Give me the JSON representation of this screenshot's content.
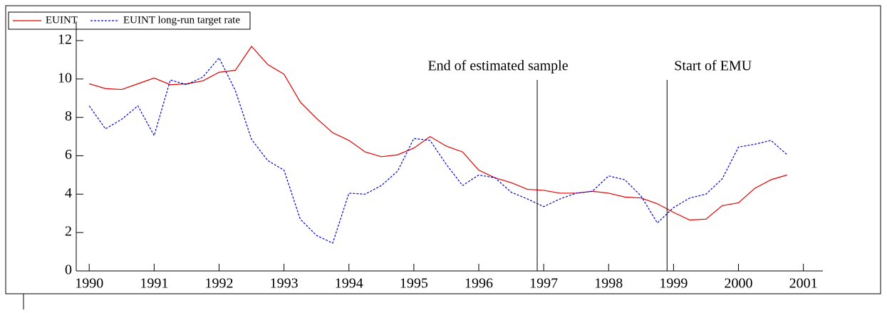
{
  "chart_data": {
    "type": "line",
    "x": [
      1990,
      1990.25,
      1990.5,
      1990.75,
      1991,
      1991.25,
      1991.5,
      1991.75,
      1992,
      1992.25,
      1992.5,
      1992.75,
      1993,
      1993.25,
      1993.5,
      1993.75,
      1994,
      1994.25,
      1994.5,
      1994.75,
      1995,
      1995.25,
      1995.5,
      1995.75,
      1996,
      1996.25,
      1996.5,
      1996.75,
      1997,
      1997.25,
      1997.5,
      1997.75,
      1998,
      1998.25,
      1998.5,
      1998.75,
      1999,
      1999.25,
      1999.5,
      1999.75,
      2000,
      2000.25,
      2000.5,
      2000.75
    ],
    "series": [
      {
        "name": "EUINT",
        "color": "#e00000",
        "dash": false,
        "values": [
          9.75,
          9.5,
          9.45,
          9.75,
          10.05,
          9.7,
          9.75,
          9.9,
          10.35,
          10.45,
          11.7,
          10.75,
          10.25,
          8.8,
          7.95,
          7.2,
          6.8,
          6.2,
          5.95,
          6.05,
          6.4,
          7.0,
          6.5,
          6.2,
          5.25,
          4.85,
          4.6,
          4.25,
          4.2,
          4.05,
          4.05,
          4.15,
          4.05,
          3.85,
          3.8,
          3.5,
          3.05,
          2.65,
          2.7,
          3.4,
          3.55,
          4.3,
          4.75,
          5.0
        ]
      },
      {
        "name": "EUINT long-run target rate",
        "color": "#0000e0",
        "dash": true,
        "values": [
          8.6,
          7.4,
          7.9,
          8.6,
          7.05,
          9.95,
          9.7,
          10.1,
          11.1,
          9.4,
          6.85,
          5.75,
          5.25,
          2.7,
          1.85,
          1.45,
          4.05,
          4.0,
          4.45,
          5.2,
          6.9,
          6.8,
          5.55,
          4.45,
          5.0,
          4.85,
          4.1,
          3.75,
          3.35,
          3.75,
          4.05,
          4.15,
          4.95,
          4.75,
          3.9,
          2.5,
          3.3,
          3.8,
          4.0,
          4.8,
          6.45,
          6.6,
          6.8,
          6.05
        ]
      }
    ],
    "annotations": [
      {
        "text": "End of estimated sample",
        "x": 1996.9
      },
      {
        "text": "Start of EMU",
        "x": 1998.9
      }
    ],
    "xlim": [
      1989.8,
      2001.3
    ],
    "xticks": [
      1990,
      1991,
      1992,
      1993,
      1994,
      1995,
      1996,
      1997,
      1998,
      1999,
      2000,
      2001
    ],
    "ylim": [
      0,
      13
    ],
    "yticks": [
      0,
      2,
      4,
      6,
      8,
      10,
      12
    ],
    "legend": "top-left"
  }
}
